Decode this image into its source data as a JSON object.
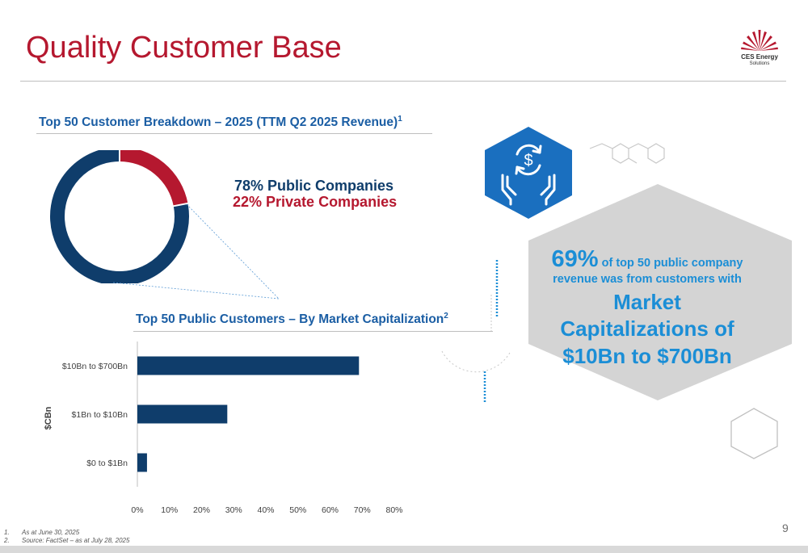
{
  "title": "Quality Customer Base",
  "logo": {
    "line1": "CES Energy",
    "line2": "Solutions"
  },
  "donut": {
    "heading": "Top 50 Customer Breakdown – 2025 (TTM Q2 2025 Revenue)",
    "heading_sup": "1",
    "public_label": "78% Public Companies",
    "private_label": "22% Private Companies"
  },
  "bars": {
    "heading": "Top 50 Public Customers – By Market Capitalization",
    "heading_sup": "2"
  },
  "stat": {
    "percent": "69%",
    "line1": " of top 50 public company",
    "line2": "revenue was from customers with",
    "line3": "Market",
    "line4": "Capitalizations of",
    "line5": "$10Bn to $700Bn"
  },
  "page_number": "9",
  "footnotes": [
    {
      "num": "1.",
      "text": "As at June 30, 2025"
    },
    {
      "num": "2.",
      "text": "Source: FactSet – as at July 28, 2025"
    }
  ],
  "colors": {
    "navy": "#0f3d6b",
    "red": "#b5182f",
    "blue": "#1b8ed6",
    "icon_blue": "#1a6fbf",
    "grey": "#d4d4d4"
  },
  "icons": {
    "hex_icon": "hands-dollar-cycle-icon",
    "logo_icon": "ces-sunburst-logo"
  },
  "chart_data": [
    {
      "type": "pie",
      "categories": [
        "Public Companies",
        "Private Companies"
      ],
      "values": [
        78,
        22
      ],
      "colors": [
        "#0f3d6b",
        "#b5182f"
      ],
      "donut": true
    },
    {
      "type": "bar",
      "orientation": "horizontal",
      "categories": [
        "$10Bn to $700Bn",
        "$1Bn to $10Bn",
        "$0 to $1Bn"
      ],
      "values": [
        69,
        28,
        3
      ],
      "ylabel": "$CBn",
      "xlim": [
        0,
        80
      ],
      "xticks": [
        "0%",
        "10%",
        "20%",
        "30%",
        "40%",
        "50%",
        "60%",
        "70%",
        "80%"
      ],
      "color": "#0f3d6b",
      "grid": false
    }
  ]
}
